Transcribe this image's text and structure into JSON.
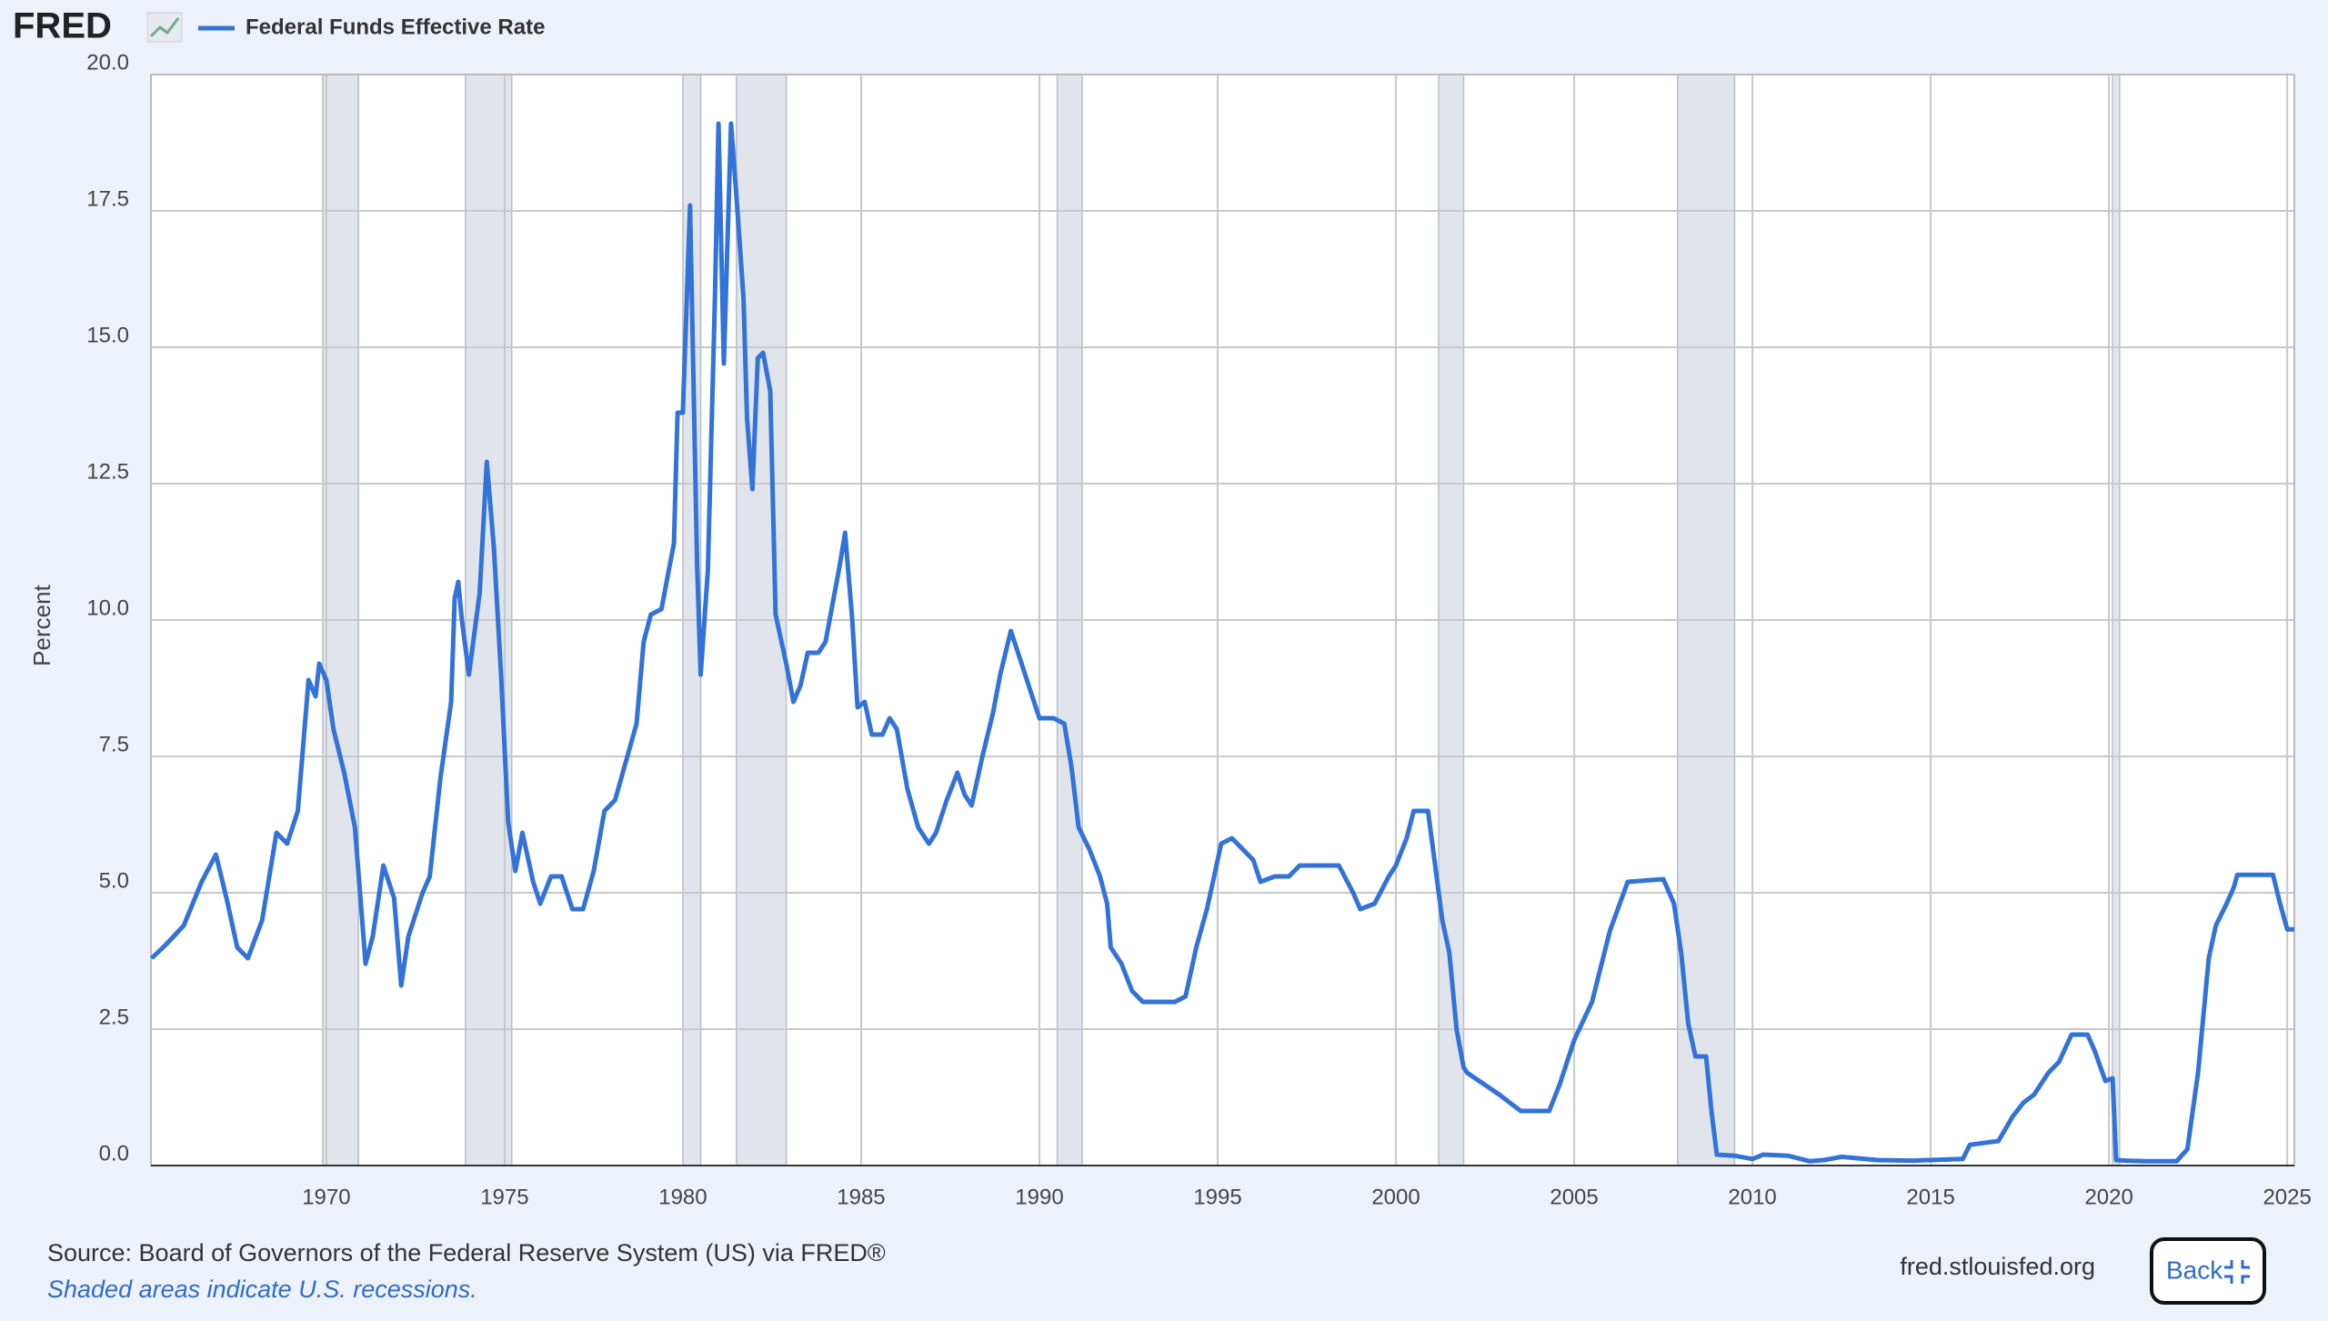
{
  "logo": "FRED",
  "chart_data": {
    "type": "line",
    "y_label": "Percent",
    "x": [
      1965.1,
      1965.5,
      1966.0,
      1966.5,
      1966.9,
      1967.2,
      1967.5,
      1967.8,
      1968.2,
      1968.6,
      1968.9,
      1969.2,
      1969.5,
      1969.7,
      1969.8,
      1970.0,
      1970.2,
      1970.5,
      1970.8,
      1971.1,
      1971.3,
      1971.6,
      1971.9,
      1972.1,
      1972.3,
      1972.7,
      1972.9,
      1973.2,
      1973.5,
      1973.6,
      1973.7,
      1973.8,
      1974.0,
      1974.3,
      1974.5,
      1974.7,
      1974.9,
      1975.1,
      1975.3,
      1975.5,
      1975.8,
      1976.0,
      1976.3,
      1976.6,
      1976.9,
      1977.2,
      1977.5,
      1977.8,
      1978.1,
      1978.4,
      1978.7,
      1978.9,
      1979.1,
      1979.4,
      1979.6,
      1979.75,
      1979.85,
      1980.0,
      1980.2,
      1980.4,
      1980.5,
      1980.7,
      1980.9,
      1981.0,
      1981.15,
      1981.35,
      1981.5,
      1981.7,
      1981.8,
      1981.95,
      1982.1,
      1982.25,
      1982.45,
      1982.6,
      1982.9,
      1983.1,
      1983.3,
      1983.5,
      1983.8,
      1984.0,
      1984.2,
      1984.4,
      1984.55,
      1984.75,
      1984.9,
      1985.1,
      1985.3,
      1985.6,
      1985.8,
      1986.0,
      1986.3,
      1986.6,
      1986.9,
      1987.1,
      1987.4,
      1987.7,
      1987.9,
      1988.1,
      1988.4,
      1988.7,
      1988.9,
      1989.2,
      1989.5,
      1989.8,
      1990.0,
      1990.4,
      1990.7,
      1990.9,
      1991.1,
      1991.4,
      1991.7,
      1991.9,
      1992.0,
      1992.3,
      1992.6,
      1992.9,
      1993.3,
      1993.8,
      1994.1,
      1994.4,
      1994.7,
      1994.9,
      1995.1,
      1995.4,
      1995.7,
      1996.0,
      1996.2,
      1996.6,
      1997.0,
      1997.3,
      1997.8,
      1998.4,
      1998.8,
      1999.0,
      1999.4,
      1999.8,
      2000.0,
      2000.3,
      2000.5,
      2000.9,
      2001.1,
      2001.3,
      2001.5,
      2001.7,
      2001.9,
      2002.0,
      2002.9,
      2003.5,
      2004.3,
      2004.6,
      2005.0,
      2005.5,
      2006.0,
      2006.5,
      2007.5,
      2007.8,
      2008.0,
      2008.2,
      2008.4,
      2008.7,
      2008.85,
      2009.0,
      2009.5,
      2010.0,
      2010.3,
      2011.0,
      2011.6,
      2012.0,
      2012.5,
      2013.5,
      2014.5,
      2015.9,
      2016.1,
      2016.9,
      2017.3,
      2017.6,
      2017.9,
      2018.3,
      2018.6,
      2018.95,
      2019.4,
      2019.6,
      2019.9,
      2020.1,
      2020.2,
      2020.5,
      2021.0,
      2021.9,
      2022.2,
      2022.5,
      2022.8,
      2023.0,
      2023.3,
      2023.5,
      2023.6,
      2024.6,
      2024.8,
      2025.0,
      2025.2
    ],
    "series": [
      {
        "name": "Federal Funds Effective Rate",
        "color": "#3272d9",
        "values": [
          3.8,
          4.05,
          4.4,
          5.2,
          5.7,
          4.9,
          4.0,
          3.8,
          4.5,
          6.1,
          5.9,
          6.5,
          8.9,
          8.6,
          9.2,
          8.9,
          8.0,
          7.2,
          6.2,
          3.7,
          4.2,
          5.5,
          4.9,
          3.3,
          4.2,
          5.0,
          5.3,
          7.1,
          8.5,
          10.4,
          10.7,
          10.0,
          9.0,
          10.5,
          12.9,
          11.3,
          9.0,
          6.3,
          5.4,
          6.1,
          5.2,
          4.8,
          5.3,
          5.3,
          4.7,
          4.7,
          5.4,
          6.5,
          6.7,
          7.4,
          8.1,
          9.6,
          10.1,
          10.2,
          10.9,
          11.4,
          13.8,
          13.8,
          17.6,
          11.0,
          9.0,
          10.9,
          15.9,
          19.1,
          14.7,
          19.1,
          17.8,
          15.9,
          13.7,
          12.4,
          14.8,
          14.9,
          14.2,
          10.1,
          9.2,
          8.5,
          8.8,
          9.4,
          9.4,
          9.6,
          10.3,
          11.0,
          11.6,
          10.0,
          8.4,
          8.5,
          7.9,
          7.9,
          8.2,
          8.0,
          6.9,
          6.2,
          5.9,
          6.1,
          6.7,
          7.2,
          6.8,
          6.6,
          7.5,
          8.3,
          9.0,
          9.8,
          9.2,
          8.6,
          8.2,
          8.2,
          8.1,
          7.3,
          6.2,
          5.8,
          5.3,
          4.8,
          4.0,
          3.7,
          3.2,
          3.0,
          3.0,
          3.0,
          3.1,
          4.0,
          4.7,
          5.3,
          5.9,
          6.0,
          5.8,
          5.6,
          5.2,
          5.3,
          5.3,
          5.5,
          5.5,
          5.5,
          5.0,
          4.7,
          4.8,
          5.3,
          5.5,
          6.0,
          6.5,
          6.5,
          5.5,
          4.5,
          3.9,
          2.5,
          1.8,
          1.7,
          1.3,
          1.0,
          1.0,
          1.5,
          2.3,
          3.0,
          4.3,
          5.2,
          5.25,
          4.8,
          3.9,
          2.6,
          2.0,
          2.0,
          1.0,
          0.2,
          0.18,
          0.12,
          0.2,
          0.18,
          0.08,
          0.1,
          0.16,
          0.1,
          0.09,
          0.12,
          0.38,
          0.45,
          0.9,
          1.15,
          1.3,
          1.7,
          1.9,
          2.4,
          2.4,
          2.1,
          1.55,
          1.6,
          0.1,
          0.09,
          0.08,
          0.08,
          0.3,
          1.7,
          3.8,
          4.4,
          4.8,
          5.1,
          5.33,
          5.33,
          4.8,
          4.33,
          4.33
        ]
      }
    ],
    "recessions": [
      [
        1969.9,
        1970.9
      ],
      [
        1973.9,
        1975.2
      ],
      [
        1980.0,
        1980.5
      ],
      [
        1981.5,
        1982.9
      ],
      [
        1990.5,
        1991.2
      ],
      [
        2001.2,
        2001.9
      ],
      [
        2007.9,
        2009.5
      ],
      [
        2020.1,
        2020.3
      ]
    ],
    "xlim": [
      1965.08,
      2025.2
    ],
    "xticks": [
      1970,
      1975,
      1980,
      1985,
      1990,
      1995,
      2000,
      2005,
      2010,
      2015,
      2020,
      2025
    ],
    "ylim": [
      0,
      20
    ],
    "yticks": [
      {
        "value": 0,
        "label": "0.0"
      },
      {
        "value": 2.5,
        "label": "2.5"
      },
      {
        "value": 5,
        "label": "5.0"
      },
      {
        "value": 7.5,
        "label": "7.5"
      },
      {
        "value": 10,
        "label": "10.0"
      },
      {
        "value": 12.5,
        "label": "12.5"
      },
      {
        "value": 15,
        "label": "15.0"
      },
      {
        "value": 17.5,
        "label": "17.5"
      },
      {
        "value": 20,
        "label": "20.0"
      }
    ],
    "grid": true
  },
  "footer": {
    "source": "Source: Board of Governors of the Federal Reserve System (US) via FRED®",
    "note": "Shaded areas indicate U.S. recessions.",
    "url": "fred.stlouisfed.org",
    "button": "Back"
  }
}
